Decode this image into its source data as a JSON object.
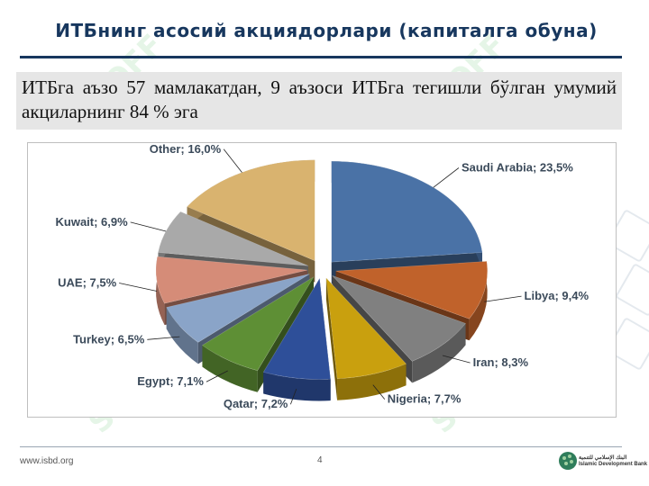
{
  "slide": {
    "title": "ИТБнинг асосий акциядорлари (капиталга обуна)",
    "intro": "ИТБга аъзо 57 мамлакатдан, 9 аъзоси ИТБга тегишли бўлган умумий акциларнинг 84 % эга",
    "page_number": "4",
    "footer_url": "www.isbd.org",
    "logo_text": [
      "البنك الإسلامي للتنمية",
      "Islamic Development Bank"
    ],
    "watermark_text": "SOFF"
  },
  "chart_data": {
    "type": "pie",
    "title": "",
    "slices": [
      {
        "label": "Saudi Arabia",
        "value": 23.5,
        "text": "Saudi Arabia; 23,5%",
        "color": "#4a72a6"
      },
      {
        "label": "Libya",
        "value": 9.4,
        "text": "Libya; 9,4%",
        "color": "#c0622b"
      },
      {
        "label": "Iran",
        "value": 8.3,
        "text": "Iran; 8,3%",
        "color": "#808080"
      },
      {
        "label": "Nigeria",
        "value": 7.7,
        "text": "Nigeria; 7,7%",
        "color": "#c9a00e"
      },
      {
        "label": "Qatar",
        "value": 7.2,
        "text": "Qatar; 7,2%",
        "color": "#2e4f99"
      },
      {
        "label": "Egypt",
        "value": 7.1,
        "text": "Egypt; 7,1%",
        "color": "#5e8f35"
      },
      {
        "label": "Turkey",
        "value": 6.5,
        "text": "Turkey; 6,5%",
        "color": "#8aa4c8"
      },
      {
        "label": "UAE",
        "value": 7.5,
        "text": "UAE; 7,5%",
        "color": "#d58c78"
      },
      {
        "label": "Kuwait",
        "value": 6.9,
        "text": "Kuwait; 6,9%",
        "color": "#a9a9a9"
      },
      {
        "label": "Other",
        "value": 16.0,
        "text": "Other; 16,0%",
        "color": "#d9b36f"
      }
    ],
    "style": "3d-exploded"
  }
}
